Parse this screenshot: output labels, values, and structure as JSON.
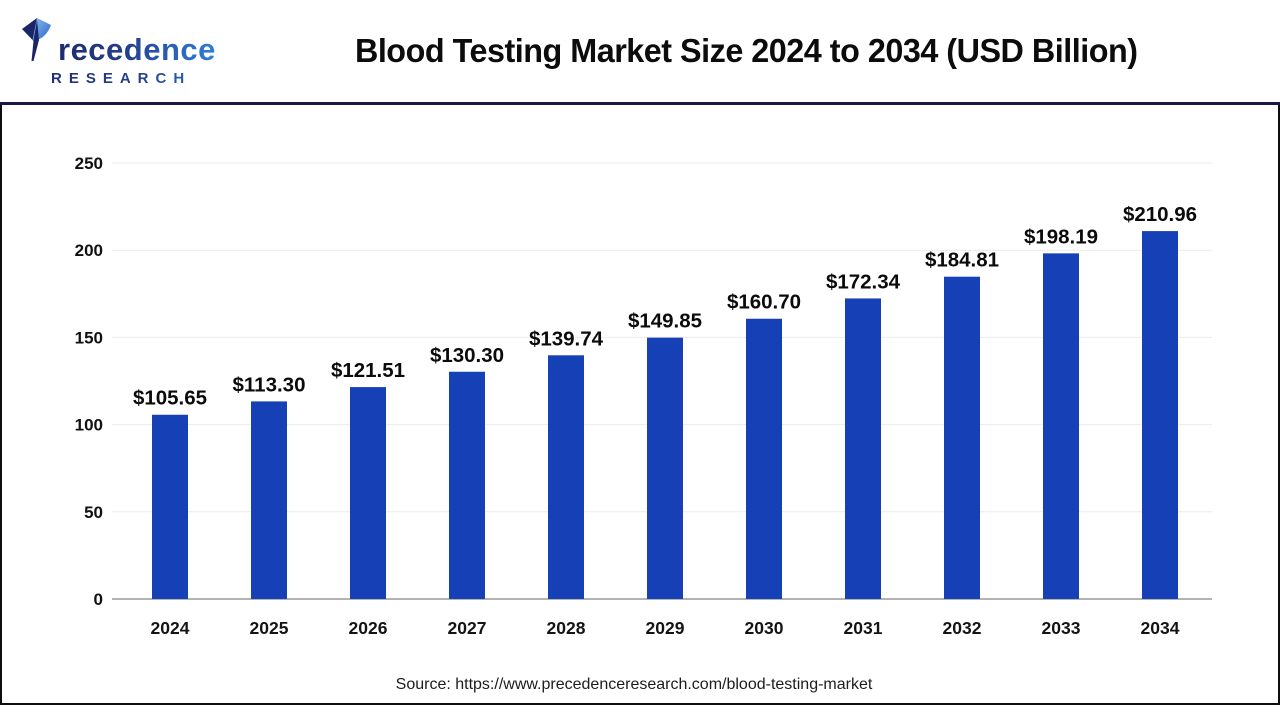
{
  "page": {
    "title": "Blood Testing Market Size 2024 to 2034 (USD Billion)",
    "source_text": "Source: https://www.precedenceresearch.com/blood-testing-market"
  },
  "logo": {
    "brand": "Precedence",
    "brand_display_rest": "recedence",
    "line2": "RESEARCH",
    "icon": "quill-p-icon"
  },
  "colors": {
    "bar": "#1640b5",
    "header_separator": "#191947",
    "grid_line": "#ececec",
    "axis_line": "#b3b3b3",
    "text": "#111111"
  },
  "chart_data": {
    "type": "bar",
    "title": "Blood Testing Market Size 2024 to 2034 (USD Billion)",
    "unit": "USD Billion",
    "categories": [
      "2024",
      "2025",
      "2026",
      "2027",
      "2028",
      "2029",
      "2030",
      "2031",
      "2032",
      "2033",
      "2034"
    ],
    "values": [
      105.65,
      113.3,
      121.51,
      130.3,
      139.74,
      149.85,
      160.7,
      172.34,
      184.81,
      198.19,
      210.96
    ],
    "value_labels": [
      "$105.65",
      "$113.30",
      "$121.51",
      "$130.30",
      "$139.74",
      "$149.85",
      "$160.70",
      "$172.34",
      "$184.81",
      "$198.19",
      "$210.96"
    ],
    "xlabel": "",
    "ylabel": "",
    "ylim": [
      0,
      250
    ],
    "yticks": [
      0,
      50,
      100,
      150,
      200,
      250
    ],
    "grid": "horizontal",
    "legend": "none"
  }
}
